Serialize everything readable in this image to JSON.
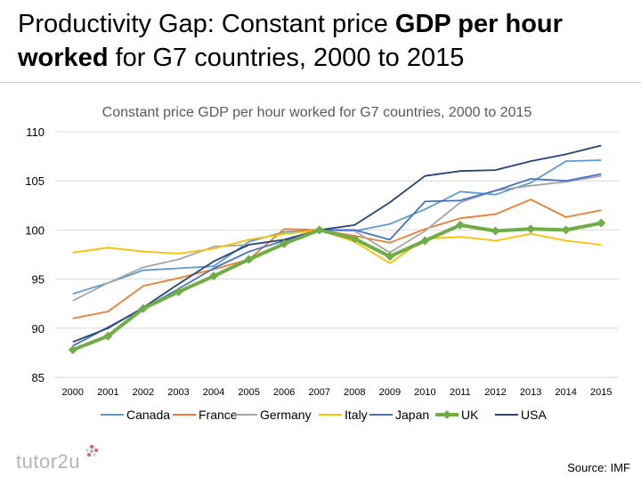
{
  "page": {
    "title_part1": "Productivity Gap: Constant price ",
    "title_bold1": "GDP per hour",
    "title_bold2": "worked",
    "title_part2": " for G7 countries, 2000 to 2015",
    "brand": "tutor2u",
    "source": "Source: IMF"
  },
  "colors": {
    "Canada": "#5b9bd5",
    "France": "#ed7d31",
    "Germany": "#a5a5a5",
    "Italy": "#ffc000",
    "Japan": "#4472c4",
    "UK": "#70ad47",
    "USA": "#264478"
  },
  "chart_data": {
    "type": "line",
    "title": "Constant price GDP per hour worked for G7 countries, 2000 to 2015",
    "xlabel": "",
    "ylabel": "",
    "ylim": [
      85,
      110
    ],
    "yticks": [
      85,
      90,
      95,
      100,
      105,
      110
    ],
    "grid": true,
    "legend": "bottom",
    "categories": [
      "2000",
      "2001",
      "2002",
      "2003",
      "2004",
      "2005",
      "2006",
      "2007",
      "2008",
      "2009",
      "2010",
      "2011",
      "2012",
      "2013",
      "2014",
      "2015"
    ],
    "series": [
      {
        "name": "Canada",
        "values": [
          93.5,
          94.6,
          95.9,
          96.1,
          96.3,
          98.8,
          99.8,
          100.0,
          99.9,
          100.6,
          102.1,
          103.9,
          103.6,
          104.8,
          107.0,
          107.1
        ]
      },
      {
        "name": "France",
        "values": [
          91.0,
          91.7,
          94.3,
          95.1,
          96.0,
          97.0,
          100.1,
          100.0,
          99.4,
          98.7,
          100.1,
          101.2,
          101.6,
          103.1,
          101.3,
          102.0
        ]
      },
      {
        "name": "Germany",
        "values": [
          92.8,
          94.6,
          96.2,
          97.0,
          98.3,
          98.5,
          99.0,
          100.0,
          99.9,
          97.7,
          99.9,
          102.8,
          104.0,
          104.5,
          104.9,
          105.5
        ]
      },
      {
        "name": "Italy",
        "values": [
          97.7,
          98.2,
          97.8,
          97.6,
          98.1,
          99.0,
          99.6,
          100.0,
          98.8,
          96.6,
          99.1,
          99.3,
          98.9,
          99.6,
          98.9,
          98.5
        ]
      },
      {
        "name": "Japan",
        "values": [
          88.2,
          90.1,
          92.0,
          94.0,
          96.1,
          97.8,
          98.9,
          100.0,
          100.0,
          99.0,
          102.9,
          103.0,
          104.0,
          105.2,
          105.0,
          105.7
        ]
      },
      {
        "name": "UK",
        "values": [
          87.8,
          89.2,
          92.0,
          93.7,
          95.3,
          97.0,
          98.6,
          100.0,
          99.1,
          97.3,
          98.9,
          100.5,
          99.9,
          100.1,
          100.0,
          100.7
        ]
      },
      {
        "name": "USA",
        "values": [
          88.6,
          90.0,
          92.1,
          94.5,
          96.8,
          98.5,
          99.0,
          100.0,
          100.5,
          102.8,
          105.5,
          106.0,
          106.1,
          107.0,
          107.7,
          108.6
        ]
      }
    ]
  }
}
